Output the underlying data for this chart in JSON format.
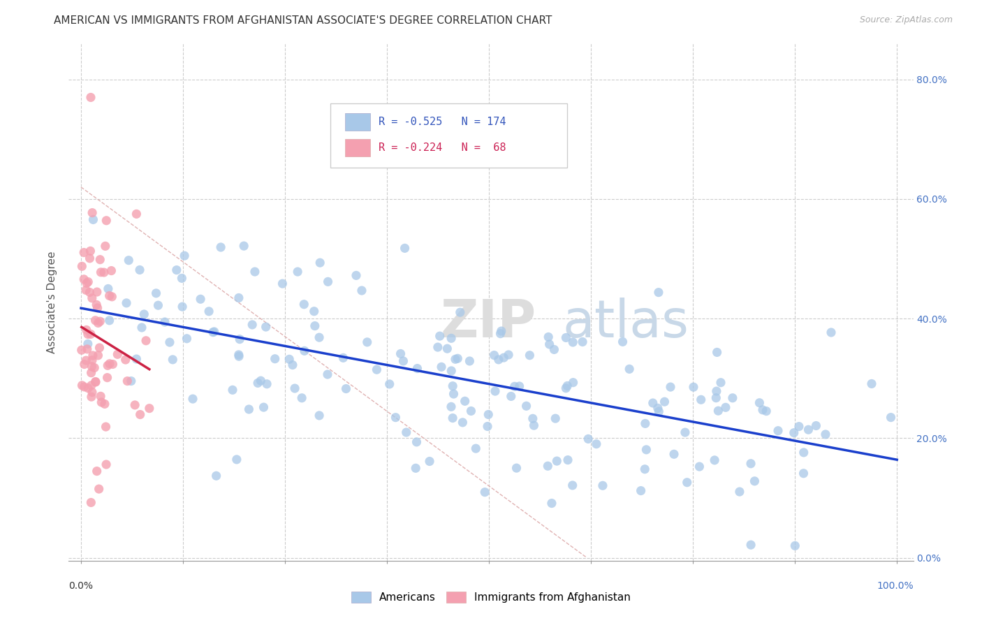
{
  "title": "AMERICAN VS IMMIGRANTS FROM AFGHANISTAN ASSOCIATE'S DEGREE CORRELATION CHART",
  "source": "Source: ZipAtlas.com",
  "ylabel": "Associate's Degree",
  "watermark_zip": "ZIP",
  "watermark_atlas": "atlas",
  "legend_blue_r": "-0.525",
  "legend_blue_n": "174",
  "legend_pink_r": "-0.224",
  "legend_pink_n": "68",
  "blue_color": "#a8c8e8",
  "pink_color": "#f4a0b0",
  "trendline_blue_color": "#1a3fcc",
  "trendline_pink_color": "#cc2244",
  "trendline_diag_color": "#ddaaaa",
  "blue_r": -0.525,
  "blue_n": 174,
  "pink_r": -0.224,
  "pink_n": 68,
  "background_color": "#ffffff",
  "seed_blue": 12,
  "seed_pink": 99
}
